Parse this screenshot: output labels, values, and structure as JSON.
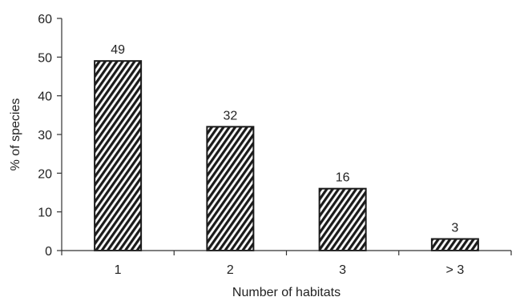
{
  "chart_data": {
    "type": "bar",
    "categories": [
      "1",
      "2",
      "3",
      "> 3"
    ],
    "values": [
      49,
      32,
      16,
      3
    ],
    "data_labels": [
      "49",
      "32",
      "16",
      "3"
    ],
    "xlabel": "Number of habitats",
    "ylabel": "% of species",
    "ylim": [
      0,
      60
    ],
    "yticks": [
      0,
      10,
      20,
      30,
      40,
      50,
      60
    ],
    "grid": false,
    "legend": "none",
    "bar_fill": "diagonal-hatch",
    "bar_color": "#1a1a1a",
    "background": "#ffffff"
  }
}
